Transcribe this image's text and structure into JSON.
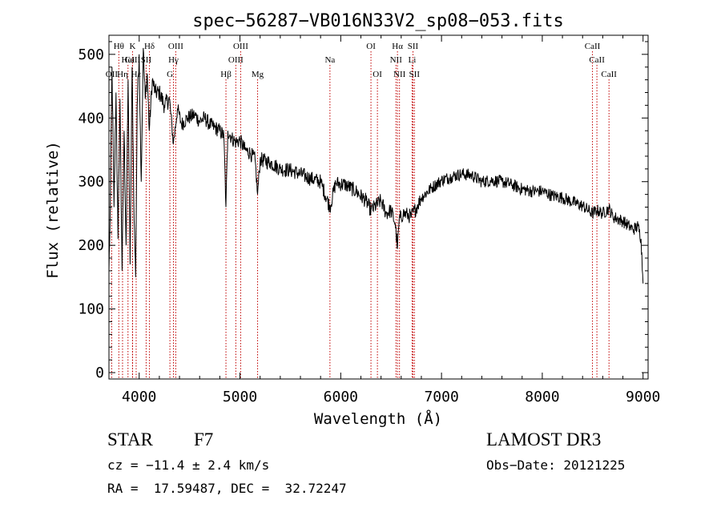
{
  "chart_data": {
    "type": "line",
    "title": "spec−56287−VB016N33V2_sp08−053.fits",
    "xlabel": "Wavelength (Å)",
    "ylabel": "Flux (relative)",
    "xlim": [
      3700,
      9050
    ],
    "ylim": [
      -10,
      530
    ],
    "x_ticks": [
      4000,
      5000,
      6000,
      7000,
      8000,
      9000
    ],
    "y_ticks": [
      0,
      100,
      200,
      300,
      400,
      500
    ],
    "series": [
      {
        "name": "flux",
        "x": [
          3700,
          3710,
          3730,
          3750,
          3770,
          3790,
          3810,
          3830,
          3850,
          3870,
          3890,
          3910,
          3930,
          3950,
          3965,
          3980,
          4000,
          4020,
          4040,
          4060,
          4080,
          4100,
          4130,
          4160,
          4200,
          4250,
          4300,
          4340,
          4380,
          4420,
          4480,
          4550,
          4600,
          4650,
          4700,
          4750,
          4800,
          4840,
          4861,
          4880,
          4920,
          4960,
          5000,
          5050,
          5100,
          5150,
          5175,
          5200,
          5300,
          5400,
          5500,
          5600,
          5700,
          5800,
          5893,
          5950,
          6050,
          6150,
          6250,
          6300,
          6400,
          6450,
          6500,
          6540,
          6563,
          6580,
          6620,
          6660,
          6700,
          6760,
          6800,
          6900,
          7000,
          7100,
          7200,
          7300,
          7400,
          7500,
          7600,
          7700,
          7800,
          7900,
          8000,
          8100,
          8200,
          8300,
          8400,
          8498,
          8542,
          8600,
          8662,
          8700,
          8800,
          8900,
          8950,
          8980,
          9000
        ],
        "y": [
          160,
          230,
          480,
          260,
          440,
          210,
          430,
          160,
          380,
          200,
          460,
          170,
          480,
          240,
          150,
          420,
          500,
          300,
          510,
          430,
          470,
          380,
          460,
          440,
          440,
          420,
          430,
          360,
          415,
          390,
          400,
          405,
          395,
          400,
          390,
          385,
          380,
          372,
          260,
          380,
          368,
          362,
          365,
          350,
          345,
          335,
          280,
          335,
          330,
          320,
          318,
          312,
          305,
          300,
          260,
          298,
          295,
          285,
          270,
          255,
          270,
          250,
          255,
          235,
          195,
          240,
          250,
          248,
          245,
          262,
          275,
          290,
          302,
          308,
          312,
          310,
          300,
          302,
          300,
          295,
          288,
          285,
          285,
          278,
          275,
          268,
          262,
          250,
          255,
          250,
          258,
          245,
          238,
          225,
          230,
          210,
          140
        ]
      }
    ],
    "lines": [
      {
        "label": "Hθ",
        "wl": 3798,
        "row": 0
      },
      {
        "label": "K",
        "wl": 3934,
        "row": 0
      },
      {
        "label": "Hδ",
        "wl": 4102,
        "row": 0
      },
      {
        "label": "OIII",
        "wl": 4363,
        "row": 0
      },
      {
        "label": "OIII",
        "wl": 5007,
        "row": 0
      },
      {
        "label": "OI",
        "wl": 6300,
        "row": 0
      },
      {
        "label": "Hα",
        "wl": 6563,
        "row": 0
      },
      {
        "label": "SII",
        "wl": 6717,
        "row": 0
      },
      {
        "label": "CaII",
        "wl": 8498,
        "row": 0
      },
      {
        "label": "CaII",
        "wl": 3934,
        "row": 1
      },
      {
        "label": "HeI",
        "wl": 3889,
        "row": 1
      },
      {
        "label": "SII",
        "wl": 4069,
        "row": 1
      },
      {
        "label": "Hγ",
        "wl": 4340,
        "row": 1
      },
      {
        "label": "OIII",
        "wl": 4959,
        "row": 1
      },
      {
        "label": "Na",
        "wl": 5893,
        "row": 1
      },
      {
        "label": "NII",
        "wl": 6548,
        "row": 1
      },
      {
        "label": "Li",
        "wl": 6708,
        "row": 1
      },
      {
        "label": "CaII",
        "wl": 8542,
        "row": 1
      },
      {
        "label": "OII",
        "wl": 3727,
        "row": 2
      },
      {
        "label": "Hη",
        "wl": 3835,
        "row": 2
      },
      {
        "label": "Hε",
        "wl": 3970,
        "row": 2
      },
      {
        "label": "G",
        "wl": 4305,
        "row": 2
      },
      {
        "label": "Hβ",
        "wl": 4861,
        "row": 2
      },
      {
        "label": "Mg",
        "wl": 5175,
        "row": 2
      },
      {
        "label": "OI",
        "wl": 6364,
        "row": 2
      },
      {
        "label": "NII",
        "wl": 6583,
        "row": 2
      },
      {
        "label": "SII",
        "wl": 6731,
        "row": 2
      },
      {
        "label": "CaII",
        "wl": 8662,
        "row": 2
      }
    ]
  },
  "info": {
    "class_label": "STAR",
    "subclass": "F7",
    "survey": "LAMOST DR3",
    "cz": "cz = −11.4 ± 2.4 km/s",
    "obs_date": "Obs−Date: 20121225",
    "coords": "RA =  17.59487, DEC =  32.72247"
  },
  "colors": {
    "line_marker": "#c00000",
    "spectrum": "#000000",
    "axis": "#000000"
  }
}
